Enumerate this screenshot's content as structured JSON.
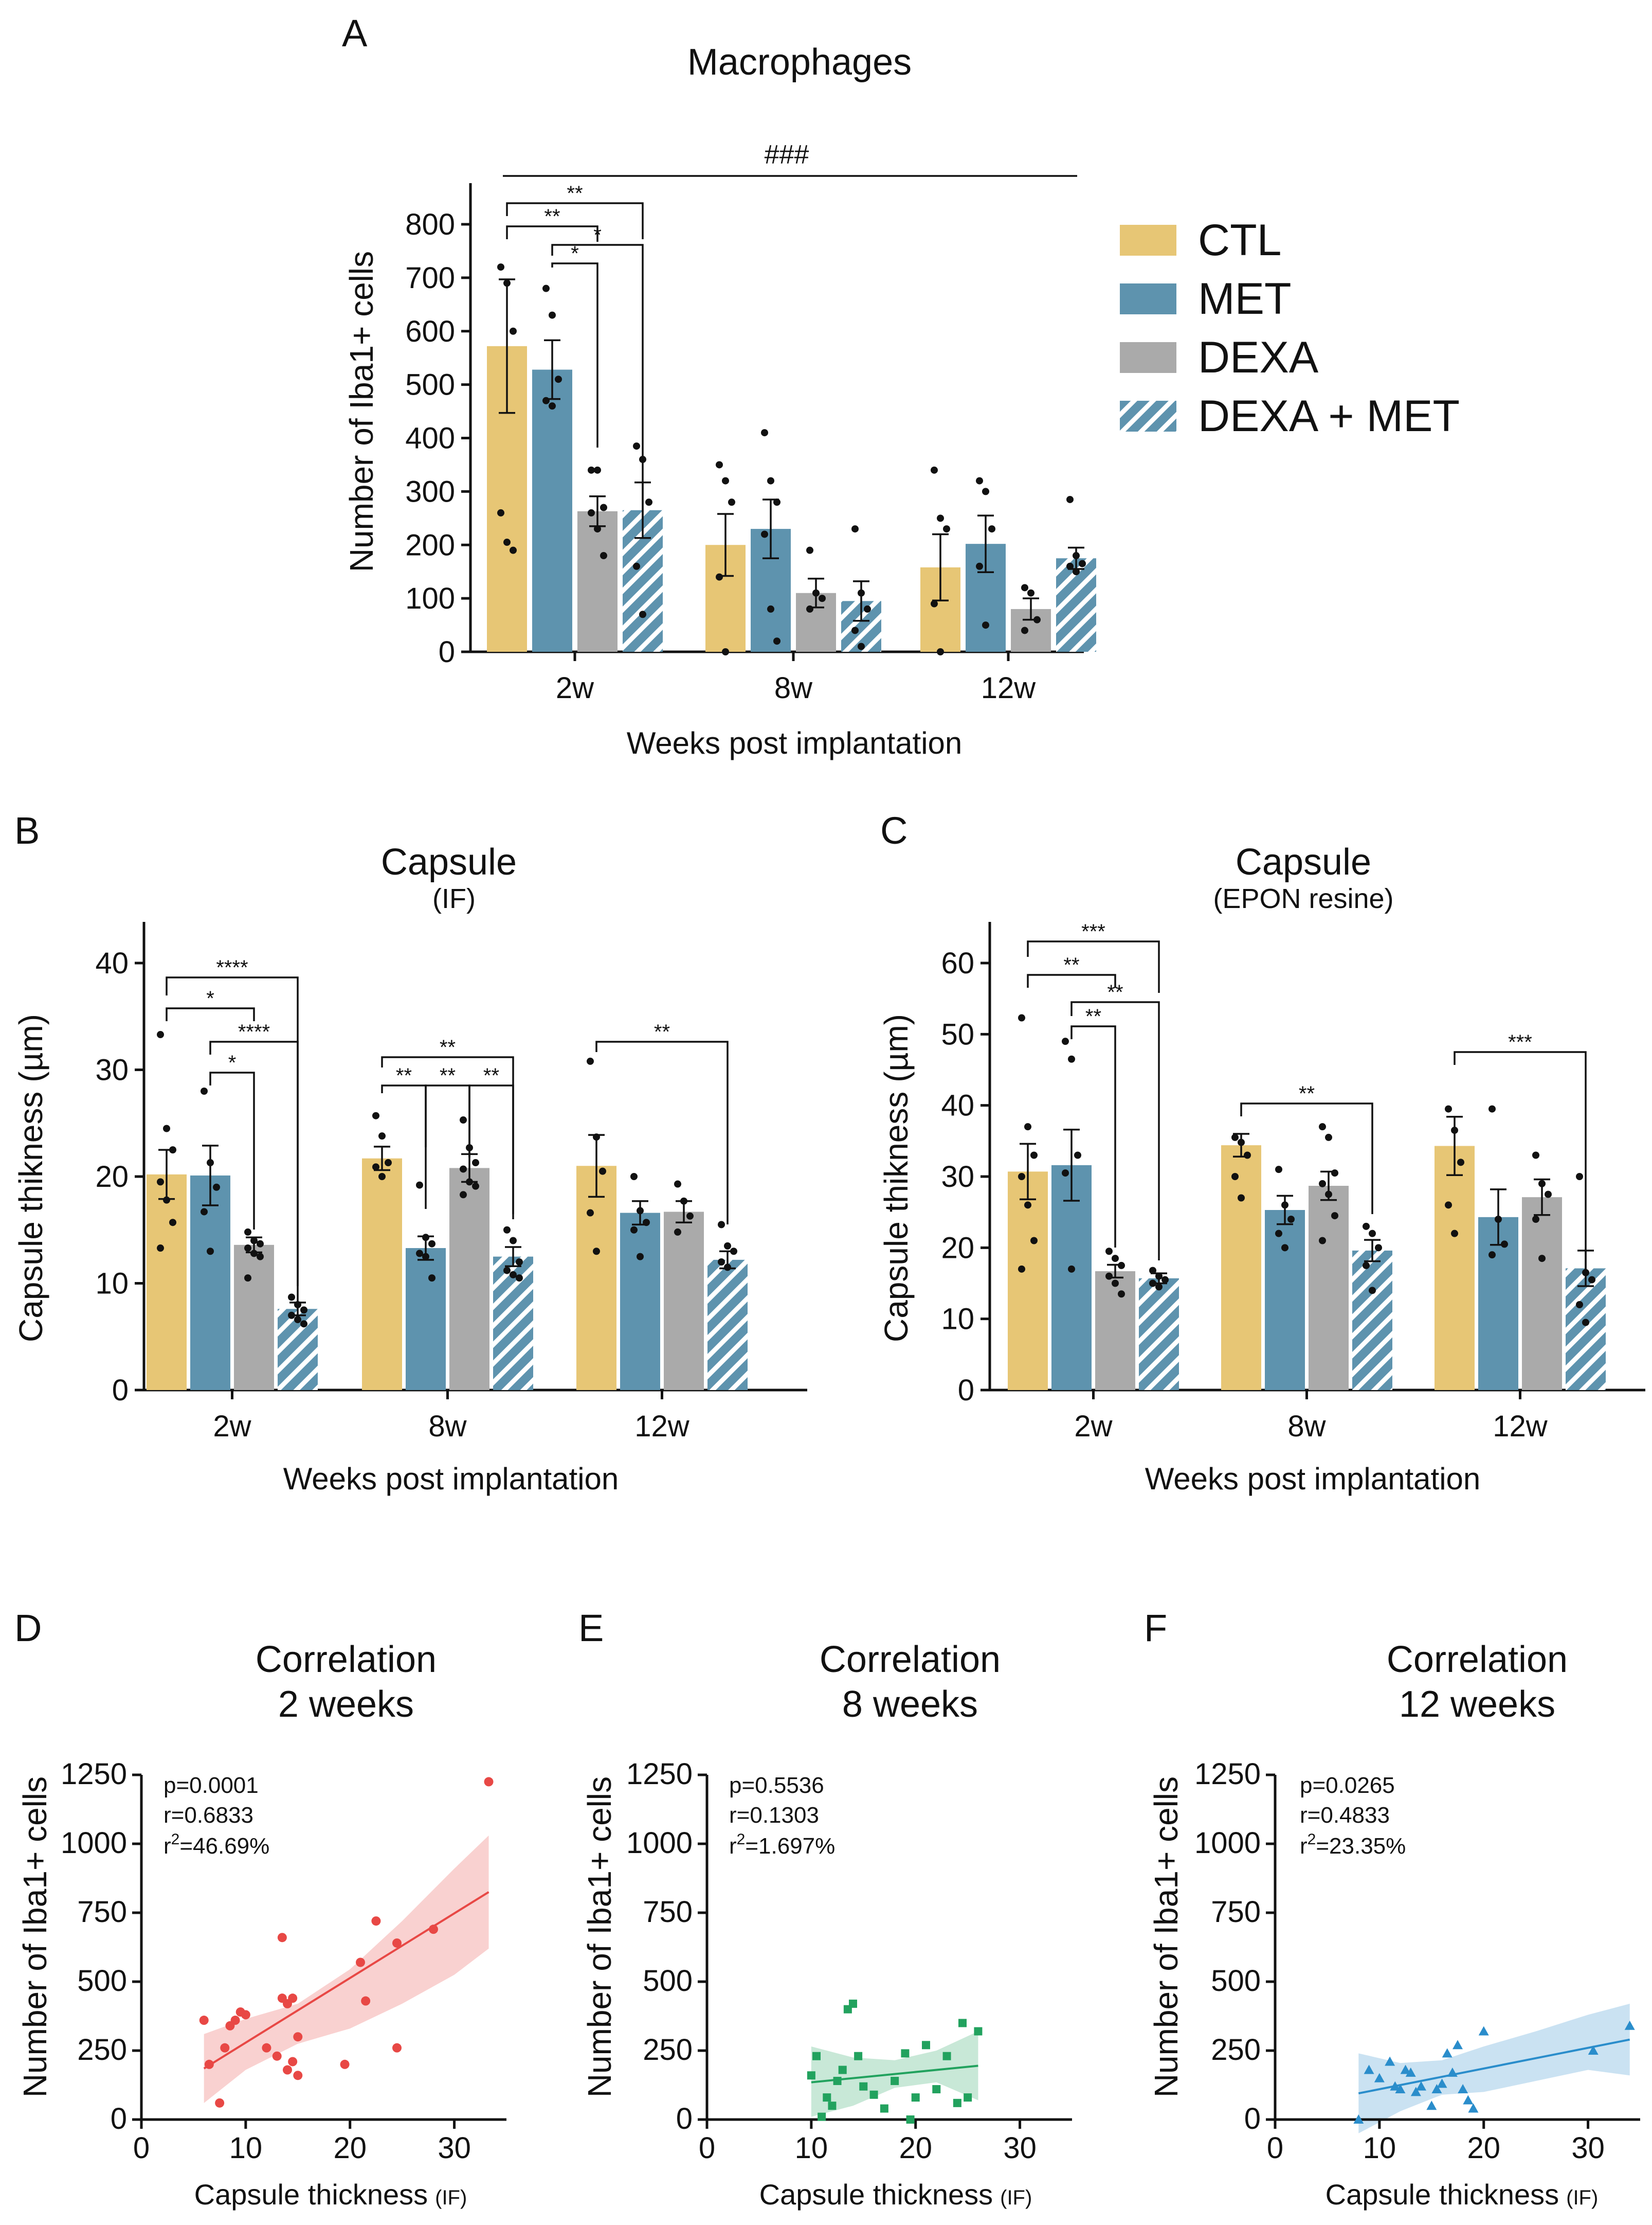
{
  "colors": {
    "CTL": "#E7C675",
    "MET": "#5E93AE",
    "DEXA": "#AAAAAA",
    "DEXA_MET_fill": "#5E93AE",
    "DEXA_MET_stripe": "#ffffff",
    "fit_D": "#E84845",
    "fit_E": "#22A25E",
    "fit_F": "#2A8DCB"
  },
  "legend": {
    "items": [
      {
        "key": "CTL",
        "label": "CTL"
      },
      {
        "key": "MET",
        "label": "MET"
      },
      {
        "key": "DEXA",
        "label": "DEXA"
      },
      {
        "key": "DEXA_MET",
        "label": "DEXA + MET"
      }
    ]
  },
  "chart_data": [
    {
      "panel": "A",
      "type": "bar",
      "title": "Macrophages",
      "subtitle": "",
      "xlabel": "Weeks post implantation",
      "ylabel": "Number of Iba1+ cells",
      "ylim": [
        0,
        800
      ],
      "yticks": [
        0,
        100,
        200,
        300,
        400,
        500,
        600,
        700,
        800
      ],
      "categories": [
        "2w",
        "8w",
        "12w"
      ],
      "series": [
        {
          "name": "CTL",
          "values": [
            572,
            200,
            158
          ],
          "sem": [
            125,
            58,
            62
          ]
        },
        {
          "name": "MET",
          "values": [
            528,
            230,
            202
          ],
          "sem": [
            55,
            55,
            53
          ]
        },
        {
          "name": "DEXA",
          "values": [
            263,
            110,
            80
          ],
          "sem": [
            28,
            27,
            20
          ]
        },
        {
          "name": "DEXA + MET",
          "values": [
            265,
            95,
            175
          ],
          "sem": [
            52,
            37,
            20
          ]
        }
      ],
      "points": [
        [
          [
            720,
            690,
            600,
            260,
            205,
            190
          ],
          [
            350,
            320,
            280,
            140,
            0
          ],
          [
            340,
            250,
            230,
            90,
            0
          ]
        ],
        [
          [
            680,
            630,
            510,
            470,
            460
          ],
          [
            410,
            320,
            280,
            220,
            80,
            20
          ],
          [
            320,
            300,
            230,
            160,
            50
          ]
        ],
        [
          [
            340,
            340,
            270,
            260,
            230,
            180
          ],
          [
            190,
            110,
            100,
            80
          ],
          [
            120,
            110,
            60,
            40
          ]
        ],
        [
          [
            385,
            360,
            280,
            160,
            70
          ],
          [
            230,
            110,
            80,
            40,
            10
          ],
          [
            285,
            180,
            165,
            160,
            150
          ]
        ]
      ],
      "significance": [
        {
          "label": "**",
          "from": [
            0,
            0
          ],
          "to": [
            0,
            3
          ]
        },
        {
          "label": "**",
          "from": [
            0,
            0
          ],
          "to": [
            0,
            2
          ]
        },
        {
          "label": "*",
          "from": [
            0,
            1
          ],
          "to": [
            0,
            3
          ]
        },
        {
          "label": "*",
          "from": [
            0,
            1
          ],
          "to": [
            0,
            2
          ]
        },
        {
          "label": "###",
          "from": [
            0,
            0
          ],
          "to": [
            2,
            3
          ]
        }
      ]
    },
    {
      "panel": "B",
      "type": "bar",
      "title": "Capsule",
      "subtitle": "(IF)",
      "xlabel": "Weeks post implantation",
      "ylabel": "Capsule thikness (µm)",
      "ylim": [
        0,
        40
      ],
      "yticks": [
        0,
        10,
        20,
        30,
        40
      ],
      "categories": [
        "2w",
        "8w",
        "12w"
      ],
      "series": [
        {
          "name": "CTL",
          "values": [
            20.2,
            21.7,
            21.0
          ],
          "sem": [
            2.3,
            1.1,
            2.9
          ]
        },
        {
          "name": "MET",
          "values": [
            20.1,
            13.3,
            16.6
          ],
          "sem": [
            2.8,
            1.1,
            1.1
          ]
        },
        {
          "name": "DEXA",
          "values": [
            13.6,
            20.8,
            16.7
          ],
          "sem": [
            0.7,
            1.3,
            1.0
          ]
        },
        {
          "name": "DEXA + MET",
          "values": [
            7.6,
            12.5,
            12.2
          ],
          "sem": [
            0.6,
            0.9,
            0.8
          ]
        }
      ],
      "points": [
        [
          [
            33.3,
            24.5,
            22.5,
            19.5,
            17.8,
            15.7,
            13.3
          ],
          [
            25.7,
            23.8,
            21.3,
            20.9,
            20.0
          ],
          [
            30.8,
            23.7,
            20.5,
            16.6,
            13.0
          ]
        ],
        [
          [
            28.0,
            21.3,
            19.0,
            16.7,
            13.0
          ],
          [
            19.2,
            14.3,
            13.7,
            12.8,
            12.5,
            10.5
          ],
          [
            20.0,
            16.8,
            15.7,
            15.0,
            12.5
          ]
        ],
        [
          [
            14.8,
            14.0,
            13.7,
            13.3,
            12.8,
            12.5,
            10.5
          ],
          [
            25.3,
            22.7,
            21.3,
            20.7,
            19.5,
            19.1,
            18.3
          ],
          [
            19.3,
            17.7,
            16.3,
            14.8
          ]
        ],
        [
          [
            8.7,
            8.0,
            7.5,
            7.0,
            6.6,
            6.2
          ],
          [
            15.0,
            14.0,
            12.0,
            11.2,
            10.8,
            10.5
          ],
          [
            15.5,
            13.5,
            13.0,
            12.0,
            11.5
          ]
        ]
      ],
      "significance": [
        {
          "label": "****",
          "from": [
            0,
            0
          ],
          "to": [
            0,
            3
          ]
        },
        {
          "label": "*",
          "from": [
            0,
            0
          ],
          "to": [
            0,
            2
          ]
        },
        {
          "label": "****",
          "from": [
            0,
            1
          ],
          "to": [
            0,
            3
          ]
        },
        {
          "label": "*",
          "from": [
            0,
            1
          ],
          "to": [
            0,
            2
          ]
        },
        {
          "label": "**",
          "from": [
            1,
            0
          ],
          "to": [
            1,
            3
          ]
        },
        {
          "label": "**",
          "from": [
            1,
            0
          ],
          "to": [
            1,
            1
          ]
        },
        {
          "label": "**",
          "from": [
            1,
            1
          ],
          "to": [
            1,
            2
          ]
        },
        {
          "label": "**",
          "from": [
            1,
            2
          ],
          "to": [
            1,
            3
          ]
        },
        {
          "label": "**",
          "from": [
            2,
            0
          ],
          "to": [
            2,
            3
          ]
        }
      ]
    },
    {
      "panel": "C",
      "type": "bar",
      "title": "Capsule",
      "subtitle": "(EPON resine)",
      "xlabel": "Weeks post implantation",
      "ylabel": "Capsule thikness (µm)",
      "ylim": [
        0,
        60
      ],
      "yticks": [
        0,
        10,
        20,
        30,
        40,
        50,
        60
      ],
      "categories": [
        "2w",
        "8w",
        "12w"
      ],
      "series": [
        {
          "name": "CTL",
          "values": [
            30.7,
            34.4,
            34.3
          ],
          "sem": [
            3.9,
            1.6,
            4.1
          ]
        },
        {
          "name": "MET",
          "values": [
            31.6,
            25.3,
            24.3
          ],
          "sem": [
            5.0,
            2.0,
            3.9
          ]
        },
        {
          "name": "DEXA",
          "values": [
            16.7,
            28.7,
            27.1
          ],
          "sem": [
            0.9,
            2.0,
            2.5
          ]
        },
        {
          "name": "DEXA + MET",
          "values": [
            15.7,
            19.6,
            17.1
          ],
          "sem": [
            0.7,
            1.5,
            2.5
          ]
        }
      ],
      "points": [
        [
          [
            52.3,
            37.0,
            33.0,
            30.0,
            26.0,
            21.0,
            17.0
          ],
          [
            35.5,
            34.8,
            33.0,
            30.0,
            27.0
          ],
          [
            39.5,
            36.5,
            32.0,
            26.0,
            22.0
          ]
        ],
        [
          [
            49.0,
            46.5,
            33.0,
            30.5,
            17.0
          ],
          [
            31.0,
            26.0,
            24.0,
            22.0,
            20.0
          ],
          [
            39.5,
            24.0,
            20.5,
            19.0
          ]
        ],
        [
          [
            19.5,
            18.5,
            17.5,
            16.0,
            15.0,
            13.5
          ],
          [
            37.0,
            35.5,
            30.5,
            29.0,
            27.5,
            24.5,
            21.0
          ],
          [
            33.0,
            29.0,
            27.5,
            24.0,
            18.5
          ]
        ],
        [
          [
            16.8,
            16.0,
            15.5,
            15.0,
            14.5
          ],
          [
            23.0,
            22.0,
            20.0,
            17.5,
            14.0
          ],
          [
            30.0,
            16.5,
            15.5,
            12.0,
            9.5
          ]
        ]
      ],
      "significance": [
        {
          "label": "***",
          "from": [
            0,
            0
          ],
          "to": [
            0,
            3
          ]
        },
        {
          "label": "**",
          "from": [
            0,
            0
          ],
          "to": [
            0,
            2
          ]
        },
        {
          "label": "**",
          "from": [
            0,
            1
          ],
          "to": [
            0,
            3
          ]
        },
        {
          "label": "**",
          "from": [
            0,
            1
          ],
          "to": [
            0,
            2
          ]
        },
        {
          "label": "**",
          "from": [
            1,
            0
          ],
          "to": [
            1,
            3
          ]
        },
        {
          "label": "***",
          "from": [
            2,
            0
          ],
          "to": [
            2,
            3
          ]
        }
      ]
    },
    {
      "panel": "D",
      "type": "scatter",
      "title": "Correlation",
      "subtitle": "2 weeks",
      "xlabel": "Capsule thickness",
      "xlabel_small": "(IF)",
      "ylabel": "Number of Iba1+ cells",
      "xlim": [
        0,
        35
      ],
      "xticks": [
        0,
        10,
        20,
        30
      ],
      "ylim": [
        0,
        1250
      ],
      "yticks": [
        0,
        250,
        500,
        750,
        1000,
        1250
      ],
      "color_key": "fit_D",
      "marker": "circle",
      "stats": {
        "p": "p=0.0001",
        "r": "r=0.6833",
        "r2_prefix": "r",
        "r2_rest": "=46.69%"
      },
      "fit": {
        "x": [
          6,
          33.3
        ],
        "y": [
          185,
          825
        ]
      },
      "band": {
        "x": [
          6,
          10,
          15,
          20,
          25,
          30,
          33.3
        ],
        "upper": [
          310,
          365,
          420,
          545,
          720,
          910,
          1030
        ],
        "lower": [
          60,
          180,
          275,
          330,
          420,
          525,
          620
        ]
      },
      "x": [
        6,
        6.5,
        7.5,
        8,
        8.5,
        9,
        9.5,
        10,
        12,
        13,
        13.5,
        13.5,
        14,
        14,
        14.5,
        14.5,
        15,
        15,
        19.5,
        21,
        21.5,
        22.5,
        24.5,
        24.5,
        28,
        33.3
      ],
      "y": [
        360,
        200,
        60,
        260,
        340,
        360,
        390,
        380,
        260,
        230,
        660,
        440,
        420,
        180,
        440,
        210,
        300,
        160,
        200,
        570,
        430,
        720,
        640,
        260,
        690,
        1225
      ]
    },
    {
      "panel": "E",
      "type": "scatter",
      "title": "Correlation",
      "subtitle": "8 weeks",
      "xlabel": "Capsule thickness",
      "xlabel_small": "(IF)",
      "ylabel": "Number of Iba1+ cells",
      "xlim": [
        0,
        35
      ],
      "xticks": [
        0,
        10,
        20,
        30
      ],
      "ylim": [
        0,
        1250
      ],
      "yticks": [
        0,
        250,
        500,
        750,
        1000,
        1250
      ],
      "color_key": "fit_E",
      "marker": "square",
      "stats": {
        "p": "p=0.5536",
        "r": "r=0.1303",
        "r2_prefix": "r",
        "r2_rest": "=1.697%"
      },
      "fit": {
        "x": [
          10,
          26
        ],
        "y": [
          135,
          195
        ]
      },
      "band": {
        "x": [
          10,
          14,
          18,
          22,
          26
        ],
        "upper": [
          265,
          225,
          215,
          250,
          320
        ],
        "lower": [
          10,
          50,
          115,
          135,
          70
        ]
      },
      "x": [
        10,
        10.5,
        11,
        11.5,
        12,
        12.5,
        13,
        13.5,
        14,
        14.5,
        15,
        16,
        17,
        18,
        19,
        19.5,
        20,
        21,
        22,
        23,
        24,
        24.5,
        25,
        26
      ],
      "y": [
        160,
        230,
        10,
        80,
        50,
        140,
        180,
        400,
        420,
        230,
        120,
        90,
        40,
        140,
        240,
        0,
        80,
        270,
        110,
        230,
        60,
        350,
        80,
        320
      ]
    },
    {
      "panel": "F",
      "type": "scatter",
      "title": "Correlation",
      "subtitle": "12 weeks",
      "xlabel": "Capsule thickness",
      "xlabel_small": "(IF)",
      "ylabel": "Number of Iba1+ cells",
      "xlim": [
        0,
        35
      ],
      "xticks": [
        0,
        10,
        20,
        30
      ],
      "ylim": [
        0,
        1250
      ],
      "yticks": [
        0,
        250,
        500,
        750,
        1000,
        1250
      ],
      "color_key": "fit_F",
      "marker": "triangle",
      "stats": {
        "p": "p=0.0265",
        "r": "r=0.4833",
        "r2_prefix": "r",
        "r2_rest": "=23.35%"
      },
      "fit": {
        "x": [
          8,
          34
        ],
        "y": [
          95,
          290
        ]
      },
      "band": {
        "x": [
          8,
          12,
          16,
          20,
          25,
          30,
          34
        ],
        "upper": [
          240,
          205,
          215,
          265,
          320,
          380,
          420
        ],
        "lower": [
          -50,
          30,
          90,
          100,
          140,
          180,
          160
        ]
      },
      "x": [
        8,
        9,
        10,
        11,
        11.5,
        12,
        12.5,
        13,
        13.5,
        14,
        15,
        15.5,
        16,
        16.5,
        17,
        17.5,
        18,
        18.5,
        19,
        20,
        30.5,
        34
      ],
      "y": [
        0,
        180,
        150,
        210,
        120,
        110,
        180,
        170,
        100,
        120,
        50,
        110,
        130,
        240,
        170,
        270,
        110,
        70,
        40,
        320,
        250,
        340
      ]
    }
  ],
  "panels": [
    {
      "letter": "A",
      "title": "Macrophages",
      "subtitle": "",
      "xlabel": "Weeks post implantation",
      "ylabel": "Number of Iba1+ cells",
      "sig_hash": "###"
    },
    {
      "letter": "B",
      "title": "Capsule",
      "subtitle": "(IF)",
      "xlabel": "Weeks post implantation",
      "ylabel": "Capsule thikness (µm)"
    },
    {
      "letter": "C",
      "title": "Capsule",
      "subtitle": "(EPON resine)",
      "xlabel": "Weeks post implantation",
      "ylabel": "Capsule thikness (µm)"
    },
    {
      "letter": "D",
      "title": "Correlation",
      "subtitle": "2 weeks",
      "xlabel": "Capsule thickness",
      "xlabel_small": "(IF)",
      "ylabel": "Number of Iba1+ cells",
      "p": "p=0.0001",
      "r": "r=0.6833",
      "r2_prefix": "r",
      "r2_rest": "=46.69%"
    },
    {
      "letter": "E",
      "title": "Correlation",
      "subtitle": "8 weeks",
      "xlabel": "Capsule thickness",
      "xlabel_small": "(IF)",
      "ylabel": "Number of Iba1+ cells",
      "p": "p=0.5536",
      "r": "r=0.1303",
      "r2_prefix": "r",
      "r2_rest": "=1.697%"
    },
    {
      "letter": "F",
      "title": "Correlation",
      "subtitle": "12 weeks",
      "xlabel": "Capsule thickness",
      "xlabel_small": "(IF)",
      "ylabel": "Number of Iba1+ cells",
      "p": "p=0.0265",
      "r": "r=0.4833",
      "r2_prefix": "r",
      "r2_rest": "=23.35%"
    }
  ]
}
